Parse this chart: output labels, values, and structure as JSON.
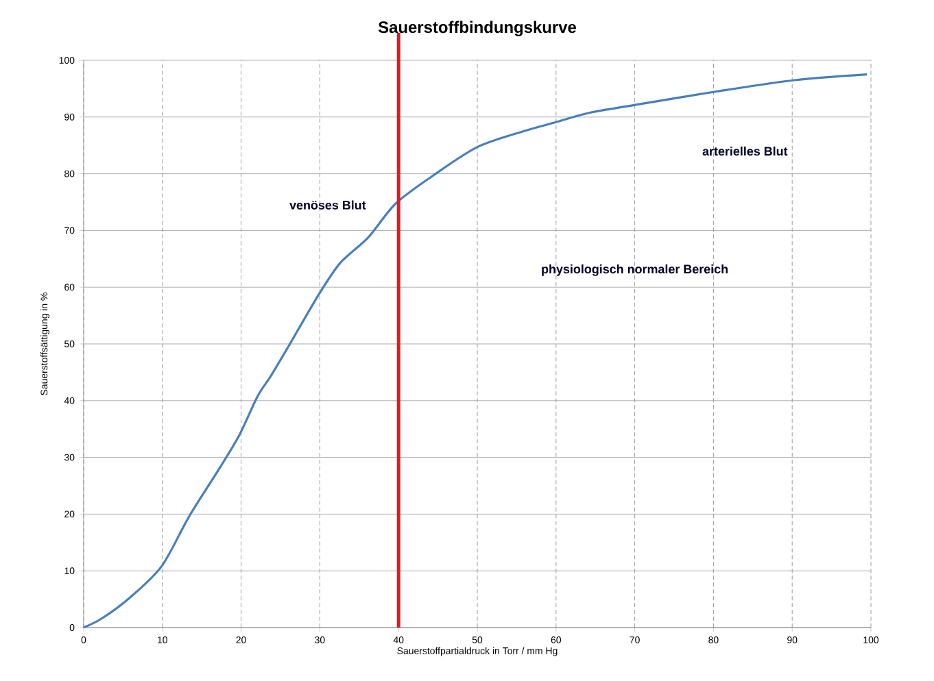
{
  "chart_data": {
    "type": "line",
    "title": "Sauerstoffbindungskurve",
    "xlabel": "Sauerstoffpartialdruck in Torr / mm Hg",
    "ylabel": "Sauerstoffsättigung in %",
    "xlim": [
      0,
      100
    ],
    "ylim": [
      0,
      100
    ],
    "xticks": [
      0,
      10,
      20,
      30,
      40,
      50,
      60,
      70,
      80,
      90,
      100
    ],
    "yticks": [
      0,
      10,
      20,
      30,
      40,
      50,
      60,
      70,
      80,
      90,
      100
    ],
    "grid": true,
    "marker": "none",
    "line_style": "solid",
    "series": [
      {
        "color": "#4a7ebb",
        "x": [
          0,
          2.3,
          5.8,
          9.9,
          13.4,
          17.4,
          19.8,
          22.1,
          23.8,
          26.2,
          29.9,
          32.6,
          36.1,
          39.6,
          44.2,
          50,
          55.9,
          60,
          64.1,
          69.9,
          80.4,
          90.3,
          99.5
        ],
        "values": [
          0,
          1.6,
          5.2,
          10.8,
          19.6,
          28.4,
          34,
          40.8,
          44.4,
          50,
          58.8,
          64.3,
          68.7,
          74.7,
          79.5,
          84.7,
          87.5,
          89.1,
          90.7,
          92.1,
          94.5,
          96.5,
          97.5
        ]
      }
    ],
    "ref_lines": [
      {
        "axis": "x",
        "value": 40,
        "color": "#e3191c"
      }
    ],
    "annotations": [
      "venöses Blut",
      "arterielles Blut",
      "physiologisch normaler Bereich"
    ]
  }
}
